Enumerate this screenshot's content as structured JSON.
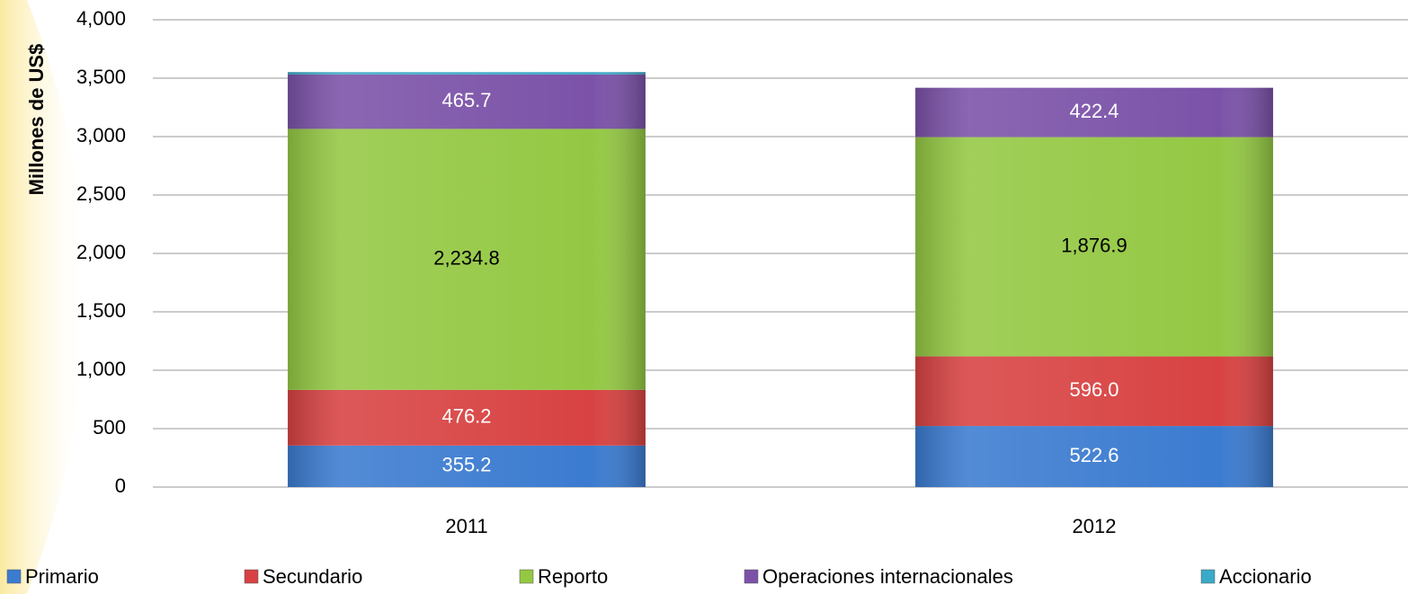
{
  "chart_data": {
    "type": "stacked_bar",
    "y_label": "Millones de US$",
    "categories": [
      "2011",
      "2012"
    ],
    "series": [
      {
        "name": "Primario",
        "color": "#3b7bd0",
        "values": [
          355.2,
          522.6
        ],
        "value_labels": [
          "355.2",
          "522.6"
        ],
        "label_color": "#ffffff"
      },
      {
        "name": "Secundario",
        "color": "#d84242",
        "values": [
          476.2,
          596.0
        ],
        "value_labels": [
          "476.2",
          "596.0"
        ],
        "label_color": "#ffffff"
      },
      {
        "name": "Reporto",
        "color": "#94c843",
        "values": [
          2234.8,
          1876.9
        ],
        "value_labels": [
          "2,234.8",
          "1,876.9"
        ],
        "label_color": "#000000"
      },
      {
        "name": "Operaciones internacionales",
        "color": "#7b52a8",
        "values": [
          465.7,
          422.4
        ],
        "value_labels": [
          "465.7",
          "422.4"
        ],
        "label_color": "#ffffff"
      },
      {
        "name": "Accionario",
        "color": "#3aaac8",
        "values": [
          20,
          0
        ]
      }
    ],
    "ylim": [
      0,
      4000
    ],
    "yticks": [
      0,
      500,
      {
        "value": 1000,
        "label": "1,000"
      },
      {
        "value": 1500,
        "label": "1,500"
      },
      {
        "value": 2000,
        "label": "2,000"
      },
      {
        "value": 2500,
        "label": "2,500"
      },
      {
        "value": 3000,
        "label": "3,000"
      },
      {
        "value": 3500,
        "label": "3,500"
      },
      {
        "value": 4000,
        "label": "4,000"
      }
    ],
    "grid": true,
    "legend": "bottom"
  }
}
